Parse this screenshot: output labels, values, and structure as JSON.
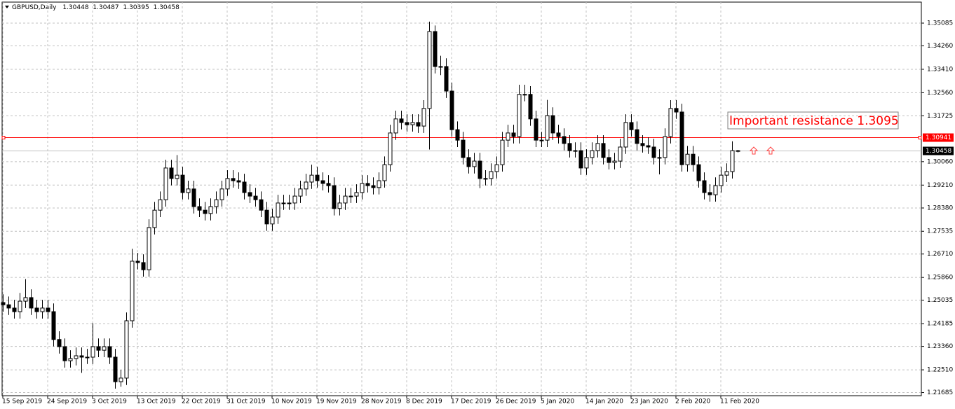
{
  "chart_data": {
    "type": "candlestick",
    "title": "GBPUSD,Daily",
    "annotation": "Important resistance  1.3095",
    "ylim": [
      1.21572,
      1.35847
    ],
    "yticks": [
      1.35085,
      {
        "value": 1.3426,
        "label": "1.34260"
      },
      {
        "value": 1.3341,
        "label": "1.33410"
      },
      {
        "value": 1.3256,
        "label": "1.32560"
      },
      1.31725,
      {
        "value": 1.3006,
        "label": "1.30060"
      },
      {
        "value": 1.2921,
        "label": "1.29210"
      },
      {
        "value": 1.2838,
        "label": "1.28380"
      },
      1.27535,
      {
        "value": 1.2671,
        "label": "1.26710"
      },
      {
        "value": 1.2586,
        "label": "1.25860"
      },
      1.25035,
      1.24185,
      {
        "value": 1.2336,
        "label": "1.23360"
      },
      {
        "value": 1.2251,
        "label": "1.22510"
      },
      1.21685
    ],
    "grid": true,
    "hlines": [
      {
        "value": 1.30941,
        "color": "#ff0000"
      },
      {
        "value": 1.30458,
        "color": "#c0c0c0"
      }
    ],
    "categories": [
      "15 Sep 2019",
      null,
      null,
      null,
      null,
      null,
      null,
      null,
      "24 Sep 2019",
      null,
      null,
      null,
      null,
      null,
      null,
      null,
      "3 Oct 2019",
      null,
      null,
      null,
      null,
      null,
      null,
      null,
      "13 Oct 2019",
      null,
      null,
      null,
      null,
      null,
      null,
      null,
      "22 Oct 2019",
      null,
      null,
      null,
      null,
      null,
      null,
      null,
      "31 Oct 2019",
      null,
      null,
      null,
      null,
      null,
      null,
      null,
      "10 Nov 2019",
      null,
      null,
      null,
      null,
      null,
      null,
      null,
      "19 Nov 2019",
      null,
      null,
      null,
      null,
      null,
      null,
      null,
      "28 Nov 2019",
      null,
      null,
      null,
      null,
      null,
      null,
      null,
      "8 Dec 2019",
      null,
      null,
      null,
      null,
      null,
      null,
      null,
      "17 Dec 2019",
      null,
      null,
      null,
      null,
      null,
      null,
      null,
      "26 Dec 2019",
      null,
      null,
      null,
      null,
      null,
      null,
      null,
      "5 Jan 2020",
      null,
      null,
      null,
      null,
      null,
      null,
      null,
      "14 Jan 2020",
      null,
      null,
      null,
      null,
      null,
      null,
      null,
      "23 Jan 2020",
      null,
      null,
      null,
      null,
      null,
      null,
      null,
      "2 Feb 2020",
      null,
      null,
      null,
      null,
      null,
      null,
      null,
      "11 Feb 2020",
      null,
      null,
      null
    ],
    "candles": [
      [
        1.2495,
        1.2525,
        1.2462,
        1.2487
      ],
      [
        1.2487,
        1.2517,
        1.245,
        1.2475
      ],
      [
        1.2475,
        1.2505,
        1.2437,
        1.2462
      ],
      [
        1.2462,
        1.253,
        1.2437,
        1.25
      ],
      [
        1.25,
        1.258,
        1.2475,
        1.2513
      ],
      [
        1.2513,
        1.2543,
        1.245,
        1.2475
      ],
      [
        1.2475,
        1.2505,
        1.2437,
        1.2462
      ],
      [
        1.2462,
        1.2505,
        1.2437,
        1.2475
      ],
      [
        1.2475,
        1.2505,
        1.2437,
        1.2462
      ],
      [
        1.2462,
        1.2492,
        1.2336,
        1.2361
      ],
      [
        1.2361,
        1.2391,
        1.231,
        1.2335
      ],
      [
        1.2335,
        1.2365,
        1.2259,
        1.2284
      ],
      [
        1.2284,
        1.2322,
        1.2259,
        1.2292
      ],
      [
        1.2292,
        1.2332,
        1.2267,
        1.2302
      ],
      [
        1.2302,
        1.2332,
        1.224,
        1.2297
      ],
      [
        1.2297,
        1.2327,
        1.2272,
        1.2297
      ],
      [
        1.2297,
        1.242,
        1.2272,
        1.2335
      ],
      [
        1.2335,
        1.2365,
        1.2297,
        1.2322
      ],
      [
        1.2322,
        1.2365,
        1.2297,
        1.2335
      ],
      [
        1.2335,
        1.2365,
        1.2272,
        1.2297
      ],
      [
        1.2297,
        1.2327,
        1.2183,
        1.2208
      ],
      [
        1.2208,
        1.2251,
        1.219,
        1.2221
      ],
      [
        1.2221,
        1.2459,
        1.2196,
        1.2429
      ],
      [
        1.2429,
        1.269,
        1.2404,
        1.2645
      ],
      [
        1.2645,
        1.2675,
        1.2615,
        1.264
      ],
      [
        1.264,
        1.267,
        1.2589,
        1.2614
      ],
      [
        1.2614,
        1.2797,
        1.2589,
        1.2767
      ],
      [
        1.2767,
        1.286,
        1.2742,
        1.283
      ],
      [
        1.283,
        1.2898,
        1.2805,
        1.2868
      ],
      [
        1.2868,
        1.3013,
        1.2843,
        1.2983
      ],
      [
        1.2983,
        1.3013,
        1.292,
        1.2945
      ],
      [
        1.2945,
        1.303,
        1.292,
        1.2957
      ],
      [
        1.2957,
        1.2987,
        1.2869,
        1.2894
      ],
      [
        1.2894,
        1.2937,
        1.2869,
        1.2907
      ],
      [
        1.2907,
        1.2937,
        1.2818,
        1.2843
      ],
      [
        1.2843,
        1.2873,
        1.2805,
        1.283
      ],
      [
        1.283,
        1.286,
        1.2793,
        1.2818
      ],
      [
        1.2818,
        1.2873,
        1.2793,
        1.2843
      ],
      [
        1.2843,
        1.2898,
        1.2818,
        1.2868
      ],
      [
        1.2868,
        1.2937,
        1.2843,
        1.2907
      ],
      [
        1.2907,
        1.2975,
        1.2882,
        1.2945
      ],
      [
        1.2945,
        1.2975,
        1.2912,
        1.2937
      ],
      [
        1.2937,
        1.2967,
        1.2907,
        1.2932
      ],
      [
        1.2932,
        1.2962,
        1.2869,
        1.2894
      ],
      [
        1.2894,
        1.2924,
        1.2856,
        1.2881
      ],
      [
        1.2881,
        1.2911,
        1.2843,
        1.2868
      ],
      [
        1.2868,
        1.2898,
        1.2805,
        1.283
      ],
      [
        1.283,
        1.286,
        1.2755,
        1.278
      ],
      [
        1.278,
        1.2835,
        1.2755,
        1.2805
      ],
      [
        1.2805,
        1.2886,
        1.278,
        1.2856
      ],
      [
        1.2856,
        1.2886,
        1.2831,
        1.2856
      ],
      [
        1.2856,
        1.2886,
        1.2831,
        1.2856
      ],
      [
        1.2856,
        1.2911,
        1.2831,
        1.2881
      ],
      [
        1.2881,
        1.2937,
        1.2856,
        1.2907
      ],
      [
        1.2907,
        1.2962,
        1.2882,
        1.2932
      ],
      [
        1.2932,
        1.2995,
        1.2907,
        1.2957
      ],
      [
        1.2957,
        1.2987,
        1.2912,
        1.2937
      ],
      [
        1.2937,
        1.2967,
        1.2902,
        1.2927
      ],
      [
        1.2927,
        1.2957,
        1.2894,
        1.2919
      ],
      [
        1.2919,
        1.2949,
        1.2811,
        1.2836
      ],
      [
        1.2836,
        1.2886,
        1.2811,
        1.2856
      ],
      [
        1.2856,
        1.2911,
        1.2831,
        1.2881
      ],
      [
        1.2881,
        1.2911,
        1.2856,
        1.2881
      ],
      [
        1.2881,
        1.2924,
        1.2856,
        1.2894
      ],
      [
        1.2894,
        1.2957,
        1.2869,
        1.2927
      ],
      [
        1.2927,
        1.2957,
        1.2894,
        1.2919
      ],
      [
        1.2919,
        1.2949,
        1.2887,
        1.2912
      ],
      [
        1.2912,
        1.2967,
        1.2887,
        1.2937
      ],
      [
        1.2937,
        1.3025,
        1.2912,
        1.2995
      ],
      [
        1.2995,
        1.314,
        1.297,
        1.311
      ],
      [
        1.311,
        1.3191,
        1.3085,
        1.3161
      ],
      [
        1.3161,
        1.3191,
        1.3123,
        1.3148
      ],
      [
        1.3148,
        1.3178,
        1.3115,
        1.314
      ],
      [
        1.314,
        1.3178,
        1.3115,
        1.3148
      ],
      [
        1.3148,
        1.3178,
        1.311,
        1.3135
      ],
      [
        1.3135,
        1.3229,
        1.311,
        1.3199
      ],
      [
        1.3199,
        1.3514,
        1.305,
        1.3478
      ],
      [
        1.3478,
        1.35,
        1.3326,
        1.3351
      ],
      [
        1.3351,
        1.339,
        1.332,
        1.3351
      ],
      [
        1.3351,
        1.3381,
        1.3237,
        1.3262
      ],
      [
        1.3262,
        1.3292,
        1.3097,
        1.3122
      ],
      [
        1.3122,
        1.3152,
        1.3059,
        1.3084
      ],
      [
        1.3084,
        1.3114,
        1.2996,
        1.3021
      ],
      [
        1.3021,
        1.3051,
        1.2963,
        1.2988
      ],
      [
        1.2988,
        1.3038,
        1.2963,
        1.3008
      ],
      [
        1.3008,
        1.3038,
        1.291,
        1.2945
      ],
      [
        1.2945,
        1.2975,
        1.292,
        1.2945
      ],
      [
        1.2945,
        1.3,
        1.292,
        1.297
      ],
      [
        1.297,
        1.3025,
        1.2945,
        1.2995
      ],
      [
        1.2995,
        1.3114,
        1.297,
        1.3084
      ],
      [
        1.3084,
        1.314,
        1.3059,
        1.311
      ],
      [
        1.311,
        1.314,
        1.3072,
        1.3097
      ],
      [
        1.3097,
        1.3285,
        1.3072,
        1.325
      ],
      [
        1.325,
        1.3285,
        1.3225,
        1.325
      ],
      [
        1.325,
        1.328,
        1.3136,
        1.3161
      ],
      [
        1.3161,
        1.3191,
        1.3059,
        1.3084
      ],
      [
        1.3084,
        1.3114,
        1.3059,
        1.3084
      ],
      [
        1.3084,
        1.323,
        1.3059,
        1.3173
      ],
      [
        1.3173,
        1.3203,
        1.3085,
        1.311
      ],
      [
        1.311,
        1.314,
        1.3072,
        1.3097
      ],
      [
        1.3097,
        1.3127,
        1.3047,
        1.3072
      ],
      [
        1.3072,
        1.3102,
        1.3021,
        1.3046
      ],
      [
        1.3046,
        1.3076,
        1.3021,
        1.3046
      ],
      [
        1.3046,
        1.3076,
        1.2958,
        1.2983
      ],
      [
        1.2983,
        1.3051,
        1.2958,
        1.3021
      ],
      [
        1.3021,
        1.3076,
        1.2996,
        1.3046
      ],
      [
        1.3046,
        1.3102,
        1.3021,
        1.3072
      ],
      [
        1.3072,
        1.3102,
        1.2996,
        1.3021
      ],
      [
        1.3021,
        1.3051,
        1.2978,
        1.3003
      ],
      [
        1.3003,
        1.3038,
        1.2978,
        1.3008
      ],
      [
        1.3008,
        1.3089,
        1.2983,
        1.3059
      ],
      [
        1.3059,
        1.3178,
        1.3034,
        1.3148
      ],
      [
        1.3148,
        1.3178,
        1.3097,
        1.3122
      ],
      [
        1.3122,
        1.3152,
        1.3047,
        1.3072
      ],
      [
        1.3072,
        1.3102,
        1.3039,
        1.3064
      ],
      [
        1.3064,
        1.3094,
        1.3034,
        1.3059
      ],
      [
        1.3059,
        1.3089,
        1.2996,
        1.3021
      ],
      [
        1.3021,
        1.3051,
        1.296,
        1.3021
      ],
      [
        1.3021,
        1.3127,
        1.2996,
        1.3097
      ],
      [
        1.3097,
        1.3229,
        1.3072,
        1.3199
      ],
      [
        1.3199,
        1.3229,
        1.3161,
        1.3186
      ],
      [
        1.3186,
        1.3216,
        1.297,
        1.2995
      ],
      [
        1.2995,
        1.3063,
        1.297,
        1.3033
      ],
      [
        1.3033,
        1.3063,
        1.297,
        1.2995
      ],
      [
        1.2995,
        1.3025,
        1.2912,
        1.2937
      ],
      [
        1.2937,
        1.2967,
        1.2869,
        1.2894
      ],
      [
        1.2894,
        1.2924,
        1.2861,
        1.2886
      ],
      [
        1.2886,
        1.2949,
        1.2861,
        1.2919
      ],
      [
        1.2919,
        1.2987,
        1.2894,
        1.2957
      ],
      [
        1.2957,
        1.3,
        1.2932,
        1.297
      ],
      [
        1.297,
        1.308,
        1.2945,
        1.3046
      ],
      [
        1.30448,
        1.30487,
        1.30395,
        1.30458
      ]
    ]
  }
}
